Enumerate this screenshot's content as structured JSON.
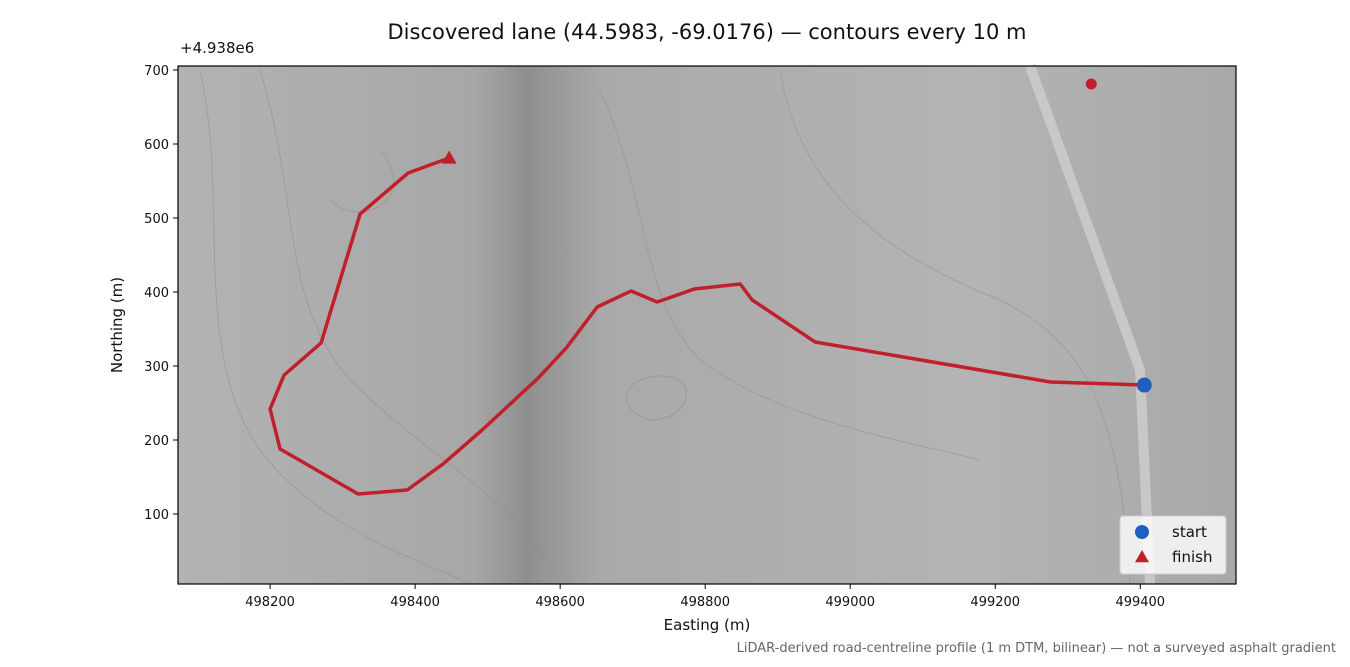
{
  "chart_data": {
    "type": "line",
    "title": "Discovered lane (44.5983, -69.0176) — contours every 10 m",
    "x_label": "Easting (m)",
    "y_label": "Northing (m)",
    "y_offset_label": "+4.938e6",
    "footnote": "LiDAR-derived road-centreline profile (1 m DTM, bilinear) — not a surveyed asphalt gradient",
    "xlim": [
      498073,
      499532
    ],
    "ylim": [
      5.4,
      705.4
    ],
    "xticks": [
      498200,
      498400,
      498600,
      498800,
      499000,
      499200,
      499400
    ],
    "yticks": [
      100,
      200,
      300,
      400,
      500,
      600,
      700
    ],
    "route": {
      "color": "#c0202a",
      "x": [
        499405.5,
        499275.9,
        498951.7,
        498864.8,
        498848.3,
        498784.8,
        498733.8,
        498697.9,
        498651,
        498608.3,
        498568.3,
        498492.4,
        498438.6,
        498389,
        498321.4,
        498213.8,
        498200,
        498219.3,
        498270.3,
        498324.1,
        498390.3,
        498446.9
      ],
      "y": [
        274.3,
        278.4,
        332.4,
        389.2,
        410.8,
        404,
        386.5,
        401.4,
        379.7,
        324.3,
        282.4,
        213.5,
        167.6,
        132.4,
        127,
        187.8,
        241.9,
        287.8,
        331.1,
        505.4,
        560.8,
        581.1
      ]
    },
    "points": [
      {
        "name": "start",
        "color": "#1f5fbf",
        "marker": "circle",
        "x": 499405.5,
        "y": 274.3
      },
      {
        "name": "finish",
        "color": "#c0202a",
        "marker": "triangle",
        "x": 498446.9,
        "y": 581.1
      }
    ],
    "markers": [
      {
        "color": "#c0202a",
        "x": 499332.4,
        "y": 681.1
      }
    ],
    "legend": "lower right"
  }
}
